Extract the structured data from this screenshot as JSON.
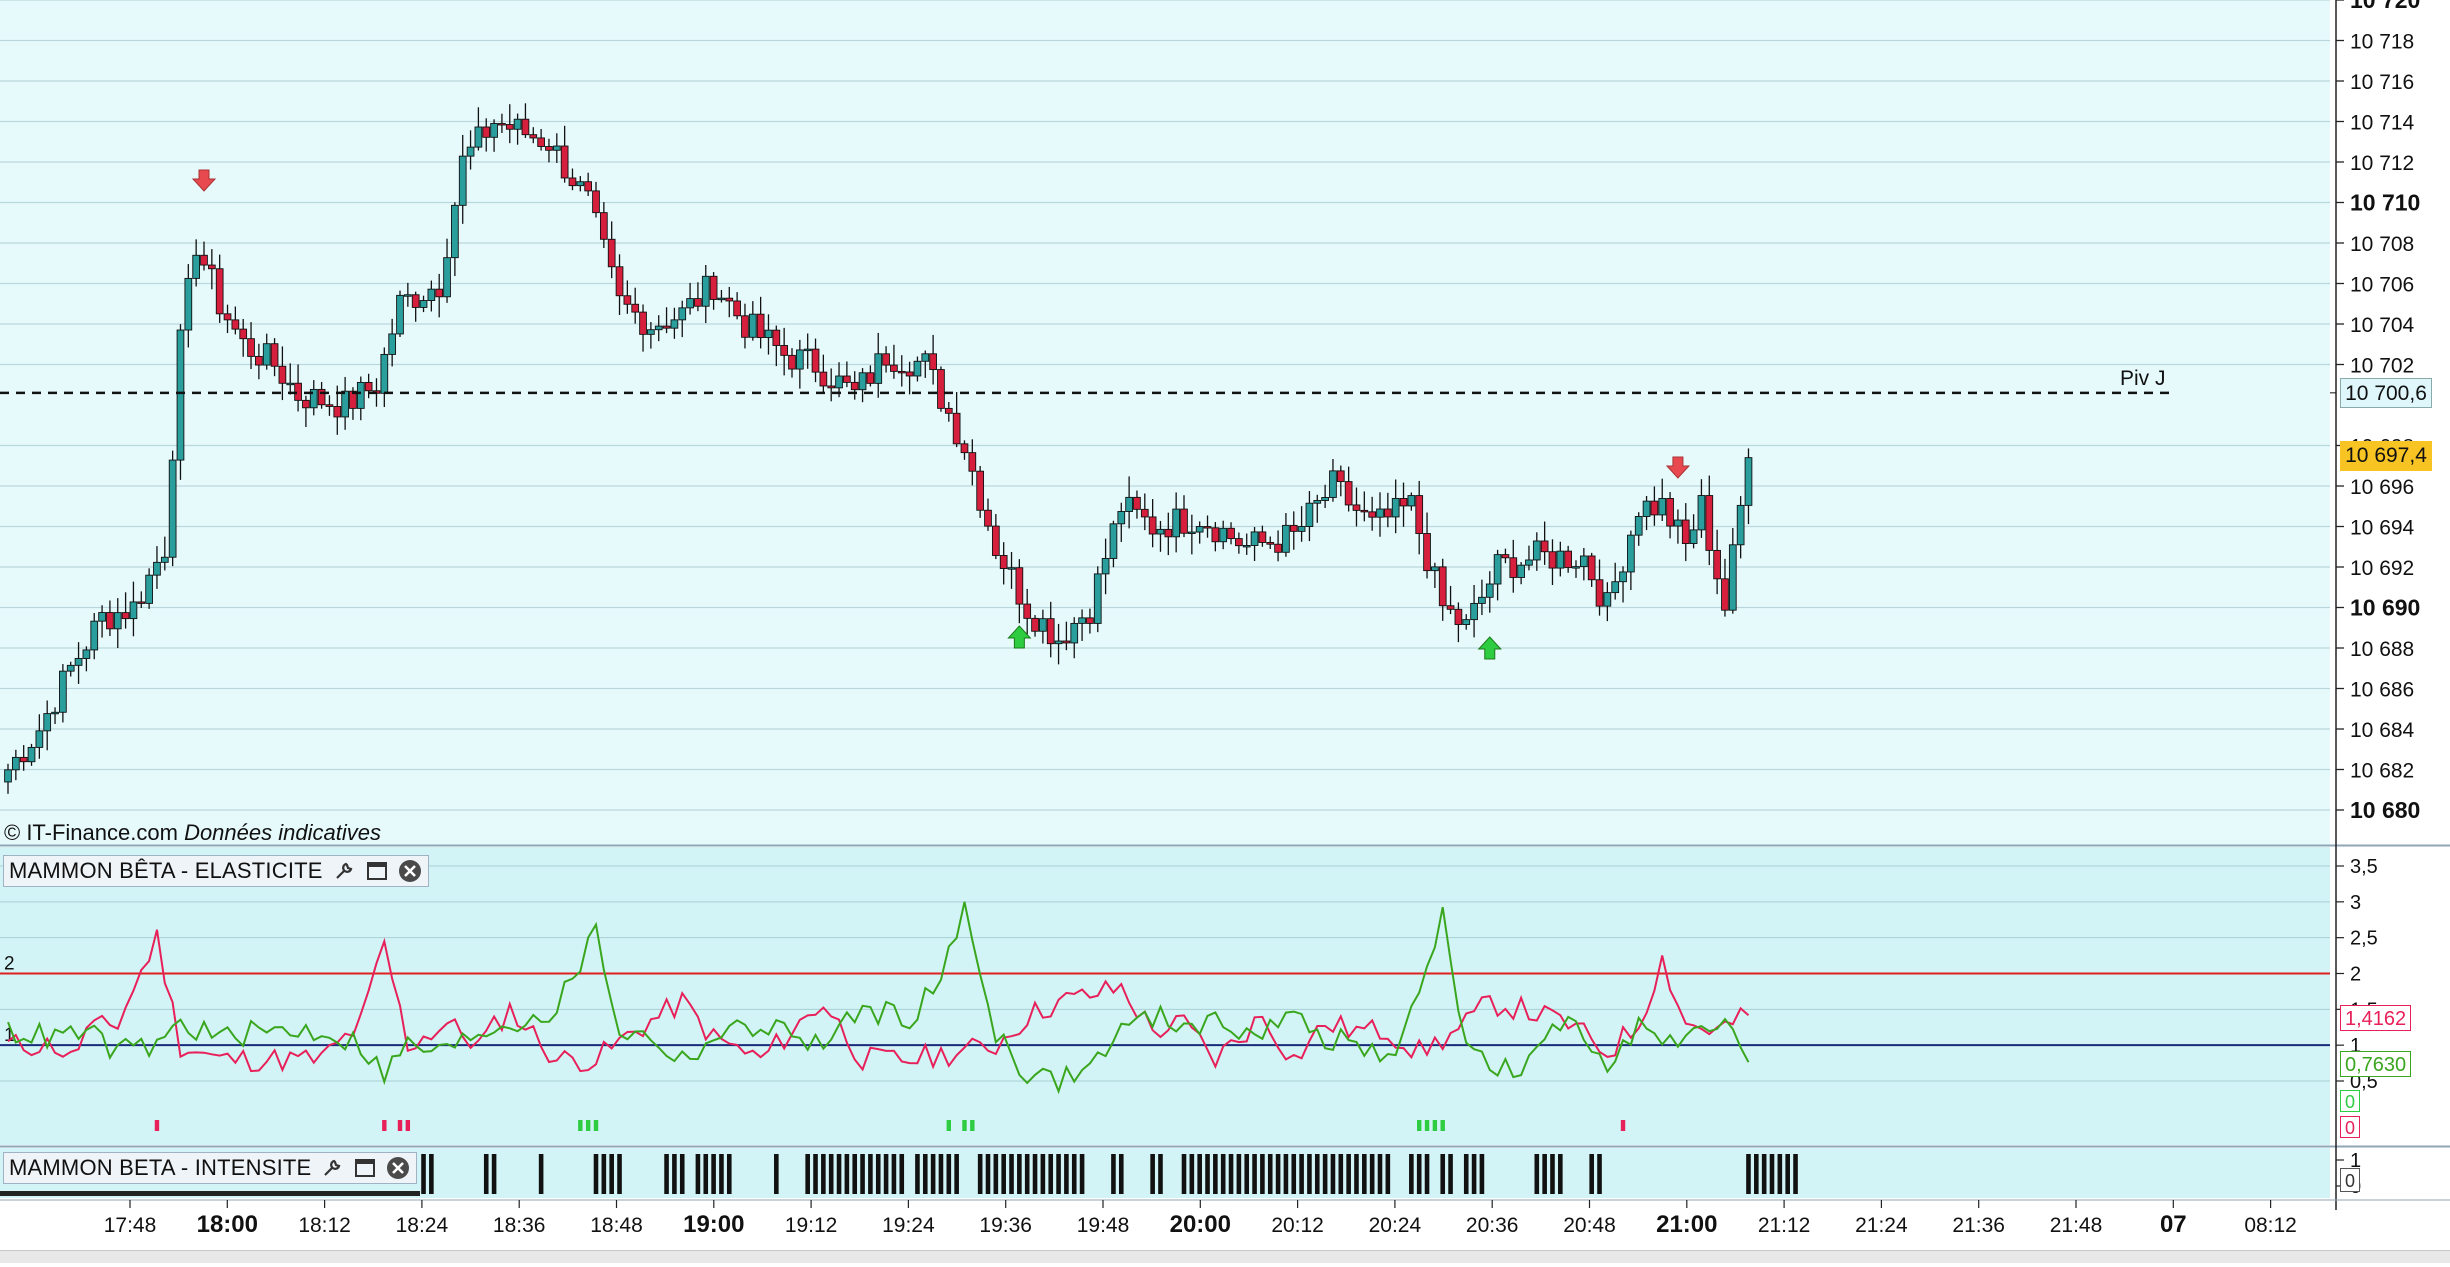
{
  "chart_data": [
    {
      "type": "candlestick",
      "title": "",
      "credit": "© IT-Finance.com",
      "credit_note": "Données indicatives",
      "ylim": [
        10680,
        10720
      ],
      "yticks": [
        {
          "v": 10720,
          "label": "10 720",
          "bold": true
        },
        {
          "v": 10718,
          "label": "10 718"
        },
        {
          "v": 10716,
          "label": "10 716"
        },
        {
          "v": 10714,
          "label": "10 714"
        },
        {
          "v": 10712,
          "label": "10 712"
        },
        {
          "v": 10710,
          "label": "10 710",
          "bold": true
        },
        {
          "v": 10708,
          "label": "10 708"
        },
        {
          "v": 10706,
          "label": "10 706"
        },
        {
          "v": 10704,
          "label": "10 704"
        },
        {
          "v": 10702,
          "label": "10 702"
        },
        {
          "v": 10698,
          "label": "10 698"
        },
        {
          "v": 10696,
          "label": "10 696"
        },
        {
          "v": 10694,
          "label": "10 694"
        },
        {
          "v": 10692,
          "label": "10 692"
        },
        {
          "v": 10690,
          "label": "10 690",
          "bold": true
        },
        {
          "v": 10688,
          "label": "10 688"
        },
        {
          "v": 10686,
          "label": "10 686"
        },
        {
          "v": 10684,
          "label": "10 684"
        },
        {
          "v": 10682,
          "label": "10 682"
        },
        {
          "v": 10680,
          "label": "10 680",
          "bold": true
        }
      ],
      "pivot": {
        "label": "Piv J",
        "value": 10700.6,
        "value_label": "10 700,6"
      },
      "last_price": {
        "value": 10697.4,
        "label": "10 697,4"
      },
      "signals": [
        {
          "kind": "sell",
          "candle": 25,
          "color": "#e8494f"
        },
        {
          "kind": "buy",
          "candle": 129,
          "color": "#2ecc40"
        },
        {
          "kind": "buy",
          "candle": 189,
          "color": "#2ecc40"
        },
        {
          "kind": "sell",
          "candle": 213,
          "color": "#e8494f"
        }
      ],
      "up_color": "#2a9d9d",
      "down_color": "#d61f3c",
      "keypoints": [
        [
          0,
          10682
        ],
        [
          4,
          10684
        ],
        [
          8,
          10687
        ],
        [
          12,
          10689.5
        ],
        [
          16,
          10690
        ],
        [
          20,
          10693
        ],
        [
          22,
          10703
        ],
        [
          24,
          10708
        ],
        [
          27,
          10705
        ],
        [
          30,
          10703
        ],
        [
          34,
          10702
        ],
        [
          37,
          10700.5
        ],
        [
          43,
          10700
        ],
        [
          47,
          10701
        ],
        [
          50,
          10705
        ],
        [
          55,
          10706
        ],
        [
          58,
          10712
        ],
        [
          62,
          10714
        ],
        [
          69,
          10713
        ],
        [
          74,
          10710
        ],
        [
          78,
          10705
        ],
        [
          82,
          10704
        ],
        [
          86,
          10704.5
        ],
        [
          90,
          10706
        ],
        [
          94,
          10704
        ],
        [
          99,
          10702.5
        ],
        [
          103,
          10702
        ],
        [
          108,
          10700.5
        ],
        [
          112,
          10702.5
        ],
        [
          117,
          10702
        ],
        [
          122,
          10698
        ],
        [
          126,
          10693
        ],
        [
          130,
          10690
        ],
        [
          134,
          10688.5
        ],
        [
          138,
          10690
        ],
        [
          142,
          10695
        ],
        [
          146,
          10694
        ],
        [
          152,
          10694.5
        ],
        [
          158,
          10693
        ],
        [
          164,
          10693.5
        ],
        [
          169,
          10696
        ],
        [
          174,
          10694
        ],
        [
          179,
          10695
        ],
        [
          183,
          10690
        ],
        [
          186,
          10689
        ],
        [
          190,
          10692
        ],
        [
          195,
          10692.5
        ],
        [
          201,
          10692.5
        ],
        [
          204,
          10690
        ],
        [
          208,
          10695
        ],
        [
          211,
          10695
        ],
        [
          214,
          10693
        ],
        [
          216,
          10695
        ],
        [
          219,
          10690
        ],
        [
          222,
          10697.4
        ]
      ],
      "x_ticks": [
        {
          "label": "17:48"
        },
        {
          "label": "18:00",
          "bold": true
        },
        {
          "label": "18:12"
        },
        {
          "label": "18:24"
        },
        {
          "label": "18:36"
        },
        {
          "label": "18:48"
        },
        {
          "label": "19:00",
          "bold": true
        },
        {
          "label": "19:12"
        },
        {
          "label": "19:24"
        },
        {
          "label": "19:36"
        },
        {
          "label": "19:48"
        },
        {
          "label": "20:00",
          "bold": true
        },
        {
          "label": "20:12"
        },
        {
          "label": "20:24"
        },
        {
          "label": "20:36"
        },
        {
          "label": "20:48"
        },
        {
          "label": "21:00",
          "bold": true
        },
        {
          "label": "21:12"
        },
        {
          "label": "21:24"
        },
        {
          "label": "21:36"
        },
        {
          "label": "21:48"
        },
        {
          "label": "07",
          "bold": true
        },
        {
          "label": "08:12"
        }
      ]
    },
    {
      "type": "line",
      "title": "MAMMON BÊTA - ELASTICITE",
      "ylim": [
        0,
        3.5
      ],
      "yticks": [
        "3,5",
        "3",
        "2,5",
        "2",
        "1,5",
        "1",
        "0,5"
      ],
      "threshold_upper": 2,
      "threshold_upper_label": "2",
      "baseline": 1,
      "baseline_label": "1",
      "series": [
        {
          "color": "#e8205a",
          "last_label": "1,4162",
          "keypoints": [
            [
              0,
              1
            ],
            [
              6,
              1
            ],
            [
              8,
              0.8
            ],
            [
              10,
              1.2
            ],
            [
              14,
              1.3
            ],
            [
              19,
              2.5
            ],
            [
              22,
              1
            ],
            [
              27,
              0.8
            ],
            [
              33,
              0.8
            ],
            [
              40,
              0.8
            ],
            [
              45,
              1.3
            ],
            [
              48,
              2.4
            ],
            [
              51,
              1
            ],
            [
              56,
              1.3
            ],
            [
              60,
              1
            ],
            [
              64,
              1.5
            ],
            [
              70,
              0.8
            ],
            [
              75,
              0.8
            ],
            [
              80,
              1.2
            ],
            [
              86,
              1.6
            ],
            [
              90,
              1.1
            ],
            [
              96,
              0.8
            ],
            [
              104,
              1.6
            ],
            [
              109,
              0.8
            ],
            [
              115,
              0.8
            ],
            [
              121,
              0.9
            ],
            [
              126,
              1
            ],
            [
              130,
              1.4
            ],
            [
              134,
              1.6
            ],
            [
              138,
              1.7
            ],
            [
              142,
              1.8
            ],
            [
              146,
              1.2
            ],
            [
              150,
              1.3
            ],
            [
              154,
              0.8
            ],
            [
              160,
              1.4
            ],
            [
              164,
              0.8
            ],
            [
              168,
              1.3
            ],
            [
              172,
              1.2
            ],
            [
              176,
              1.2
            ],
            [
              180,
              0.9
            ],
            [
              185,
              1.2
            ],
            [
              189,
              1.6
            ],
            [
              193,
              1.5
            ],
            [
              199,
              1.3
            ],
            [
              204,
              0.9
            ],
            [
              208,
              1.3
            ],
            [
              211,
              2.2
            ],
            [
              214,
              1.3
            ],
            [
              218,
              1.2
            ],
            [
              222,
              1.4162
            ]
          ]
        },
        {
          "color": "#3aa61e",
          "last_label": "0,7630",
          "keypoints": [
            [
              0,
              1.2
            ],
            [
              6,
              1.1
            ],
            [
              10,
              1.2
            ],
            [
              14,
              0.9
            ],
            [
              19,
              1
            ],
            [
              22,
              1.3
            ],
            [
              27,
              1.1
            ],
            [
              33,
              1.2
            ],
            [
              40,
              1.2
            ],
            [
              45,
              1
            ],
            [
              48,
              0.6
            ],
            [
              51,
              1
            ],
            [
              56,
              0.9
            ],
            [
              60,
              1.2
            ],
            [
              64,
              1.3
            ],
            [
              70,
              1.5
            ],
            [
              75,
              2.6
            ],
            [
              78,
              1.2
            ],
            [
              82,
              1.1
            ],
            [
              86,
              0.8
            ],
            [
              90,
              1.1
            ],
            [
              96,
              1.3
            ],
            [
              104,
              1
            ],
            [
              109,
              1.5
            ],
            [
              115,
              1.4
            ],
            [
              119,
              1.9
            ],
            [
              122,
              2.9
            ],
            [
              126,
              1.2
            ],
            [
              130,
              0.6
            ],
            [
              134,
              0.5
            ],
            [
              138,
              0.7
            ],
            [
              142,
              1.2
            ],
            [
              146,
              1.4
            ],
            [
              150,
              1.3
            ],
            [
              154,
              1.3
            ],
            [
              160,
              1.2
            ],
            [
              164,
              1.4
            ],
            [
              168,
              1.1
            ],
            [
              172,
              1
            ],
            [
              176,
              0.8
            ],
            [
              180,
              1.6
            ],
            [
              183,
              2.9
            ],
            [
              186,
              1
            ],
            [
              189,
              0.7
            ],
            [
              193,
              0.6
            ],
            [
              199,
              1.4
            ],
            [
              204,
              0.8
            ],
            [
              208,
              1.3
            ],
            [
              211,
              1
            ],
            [
              214,
              1
            ],
            [
              218,
              1.4
            ],
            [
              222,
              0.763
            ]
          ]
        }
      ],
      "markers": [
        {
          "from": 19,
          "to": 19,
          "color": "#e8205a"
        },
        {
          "from": 48,
          "to": 48,
          "color": "#e8205a"
        },
        {
          "from": 50,
          "to": 51,
          "color": "#e8205a"
        },
        {
          "from": 73,
          "to": 75,
          "color": "#2ecc40"
        },
        {
          "from": 120,
          "to": 120,
          "color": "#2ecc40"
        },
        {
          "from": 122,
          "to": 123,
          "color": "#2ecc40"
        },
        {
          "from": 180,
          "to": 183,
          "color": "#2ecc40"
        },
        {
          "from": 206,
          "to": 206,
          "color": "#e8205a"
        }
      ],
      "signal_labels": [
        {
          "label": "0",
          "color": "#2ecc40"
        },
        {
          "label": "0",
          "color": "#e8205a"
        }
      ]
    },
    {
      "type": "bar",
      "title": "MAMMON BETA - INTENSITE",
      "ylim": [
        0,
        1
      ],
      "yticks": [
        "1",
        "0"
      ],
      "last_label": "0",
      "bars": [
        [
          53,
          54
        ],
        [
          61,
          62
        ],
        [
          68,
          68
        ],
        [
          75,
          78
        ],
        [
          84,
          86
        ],
        [
          88,
          92
        ],
        [
          98,
          98
        ],
        [
          102,
          114
        ],
        [
          116,
          121
        ],
        [
          124,
          132
        ],
        [
          133,
          137
        ],
        [
          141,
          142
        ],
        [
          146,
          147
        ],
        [
          150,
          176
        ],
        [
          179,
          181
        ],
        [
          183,
          184
        ],
        [
          186,
          188
        ],
        [
          195,
          198
        ],
        [
          202,
          203
        ],
        [
          222,
          228
        ]
      ]
    }
  ],
  "time_ticks_source": "chart_data.0.x_ticks"
}
